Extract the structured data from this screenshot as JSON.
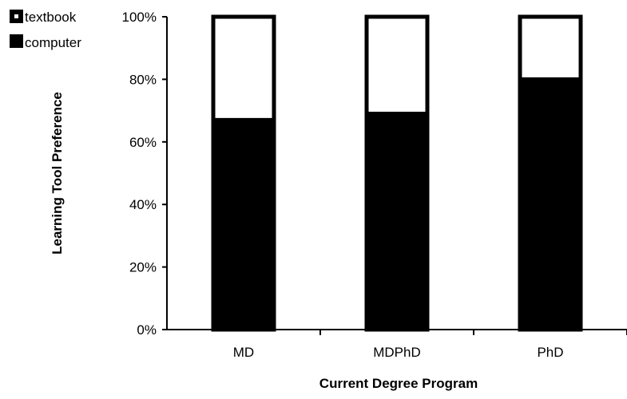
{
  "chart_data": {
    "type": "bar",
    "stacked": true,
    "percent_stacked": true,
    "categories": [
      "MD",
      "MDPhD",
      "PhD"
    ],
    "series": [
      {
        "name": "computer",
        "values": [
          67,
          69,
          80
        ],
        "color": "#000000"
      },
      {
        "name": "textbook",
        "values": [
          33,
          31,
          20
        ],
        "color": "#ffffff"
      }
    ],
    "title": "",
    "xlabel": "Current Degree Program",
    "ylabel": "Learning Tool Preference",
    "ylim": [
      0,
      100
    ],
    "y_ticks": [
      "0%",
      "20%",
      "40%",
      "60%",
      "80%",
      "100%"
    ],
    "grid": false,
    "legend": {
      "position": "top-left",
      "entries": [
        "textbook",
        "computer"
      ]
    }
  }
}
